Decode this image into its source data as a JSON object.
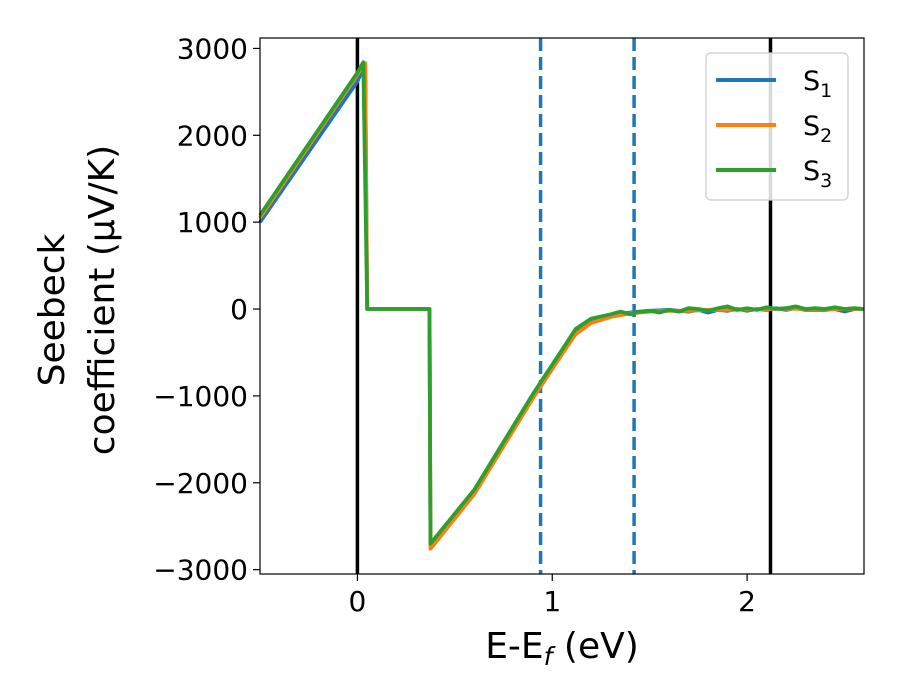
{
  "chart_data": {
    "type": "line",
    "xlabel": {
      "main": "E-E",
      "sub": "f",
      "rest": " (eV)"
    },
    "ylabel_line1": "Seebeck",
    "ylabel_line2": "coefficient  (μV/K)",
    "xlim": [
      -0.5,
      2.6
    ],
    "ylim": [
      -3050,
      3120
    ],
    "xticks": [
      {
        "value": 0,
        "label": "0"
      },
      {
        "value": 1,
        "label": "1"
      },
      {
        "value": 2,
        "label": "2"
      }
    ],
    "yticks": [
      {
        "value": 3000,
        "label": "3000"
      },
      {
        "value": 2000,
        "label": "2000"
      },
      {
        "value": 1000,
        "label": "1000"
      },
      {
        "value": 0,
        "label": "0"
      },
      {
        "value": -1000,
        "label": "−1000"
      },
      {
        "value": -2000,
        "label": "−2000"
      },
      {
        "value": -3000,
        "label": "−3000"
      }
    ],
    "vlines": [
      {
        "x": 0.0,
        "color": "#000000",
        "style": "solid"
      },
      {
        "x": 0.94,
        "color": "#1f77b4",
        "style": "dashed"
      },
      {
        "x": 1.42,
        "color": "#1f77b4",
        "style": "dashed"
      },
      {
        "x": 2.12,
        "color": "#000000",
        "style": "solid"
      }
    ],
    "legend_position": "top-right",
    "grid": false,
    "series": [
      {
        "name": "S",
        "subscript": "1",
        "color": "#1f77b4",
        "points": [
          [
            -0.5,
            1000
          ],
          [
            0.0,
            2620
          ],
          [
            0.04,
            2820
          ],
          [
            0.05,
            0
          ],
          [
            0.37,
            0
          ],
          [
            0.375,
            -2720
          ],
          [
            0.6,
            -2100
          ],
          [
            0.9,
            -1000
          ],
          [
            1.05,
            -480
          ],
          [
            1.12,
            -250
          ],
          [
            1.2,
            -130
          ],
          [
            1.3,
            -70
          ],
          [
            1.4,
            -40
          ],
          [
            1.5,
            -20
          ],
          [
            1.6,
            -10
          ],
          [
            1.65,
            -20
          ],
          [
            1.7,
            -30
          ],
          [
            1.75,
            -10
          ],
          [
            1.8,
            -40
          ],
          [
            1.85,
            -10
          ],
          [
            1.9,
            -20
          ],
          [
            1.95,
            0
          ],
          [
            2.0,
            -20
          ],
          [
            2.05,
            0
          ],
          [
            2.1,
            -10
          ],
          [
            2.15,
            10
          ],
          [
            2.2,
            -10
          ],
          [
            2.25,
            10
          ],
          [
            2.3,
            -10
          ],
          [
            2.4,
            -10
          ],
          [
            2.45,
            0
          ],
          [
            2.5,
            -30
          ],
          [
            2.55,
            0
          ],
          [
            2.6,
            0
          ]
        ]
      },
      {
        "name": "S",
        "subscript": "2",
        "color": "#ff7f0e",
        "points": [
          [
            -0.5,
            1050
          ],
          [
            0.0,
            2700
          ],
          [
            0.04,
            2830
          ],
          [
            0.05,
            0
          ],
          [
            0.37,
            0
          ],
          [
            0.375,
            -2760
          ],
          [
            0.6,
            -2130
          ],
          [
            0.9,
            -1030
          ],
          [
            1.05,
            -520
          ],
          [
            1.12,
            -290
          ],
          [
            1.2,
            -160
          ],
          [
            1.3,
            -90
          ],
          [
            1.4,
            -50
          ],
          [
            1.5,
            -30
          ],
          [
            1.6,
            -20
          ],
          [
            1.7,
            -20
          ],
          [
            1.8,
            -10
          ],
          [
            1.9,
            -10
          ],
          [
            2.0,
            -5
          ],
          [
            2.1,
            0
          ],
          [
            2.2,
            5
          ],
          [
            2.3,
            0
          ],
          [
            2.4,
            0
          ],
          [
            2.5,
            0
          ],
          [
            2.6,
            0
          ]
        ]
      },
      {
        "name": "S",
        "subscript": "3",
        "color": "#2ca02c",
        "points": [
          [
            -0.5,
            1080
          ],
          [
            0.0,
            2720
          ],
          [
            0.03,
            2840
          ],
          [
            0.05,
            0
          ],
          [
            0.37,
            0
          ],
          [
            0.375,
            -2700
          ],
          [
            0.6,
            -2080
          ],
          [
            0.9,
            -980
          ],
          [
            1.05,
            -470
          ],
          [
            1.12,
            -230
          ],
          [
            1.2,
            -110
          ],
          [
            1.3,
            -60
          ],
          [
            1.35,
            -30
          ],
          [
            1.4,
            -60
          ],
          [
            1.45,
            -30
          ],
          [
            1.5,
            -20
          ],
          [
            1.55,
            -40
          ],
          [
            1.6,
            -10
          ],
          [
            1.65,
            -30
          ],
          [
            1.7,
            10
          ],
          [
            1.75,
            0
          ],
          [
            1.8,
            -20
          ],
          [
            1.85,
            10
          ],
          [
            1.9,
            30
          ],
          [
            1.95,
            -10
          ],
          [
            2.0,
            10
          ],
          [
            2.05,
            -10
          ],
          [
            2.1,
            20
          ],
          [
            2.15,
            0
          ],
          [
            2.2,
            10
          ],
          [
            2.25,
            30
          ],
          [
            2.3,
            0
          ],
          [
            2.35,
            10
          ],
          [
            2.4,
            0
          ],
          [
            2.45,
            20
          ],
          [
            2.5,
            0
          ],
          [
            2.55,
            10
          ],
          [
            2.6,
            0
          ]
        ]
      }
    ]
  }
}
